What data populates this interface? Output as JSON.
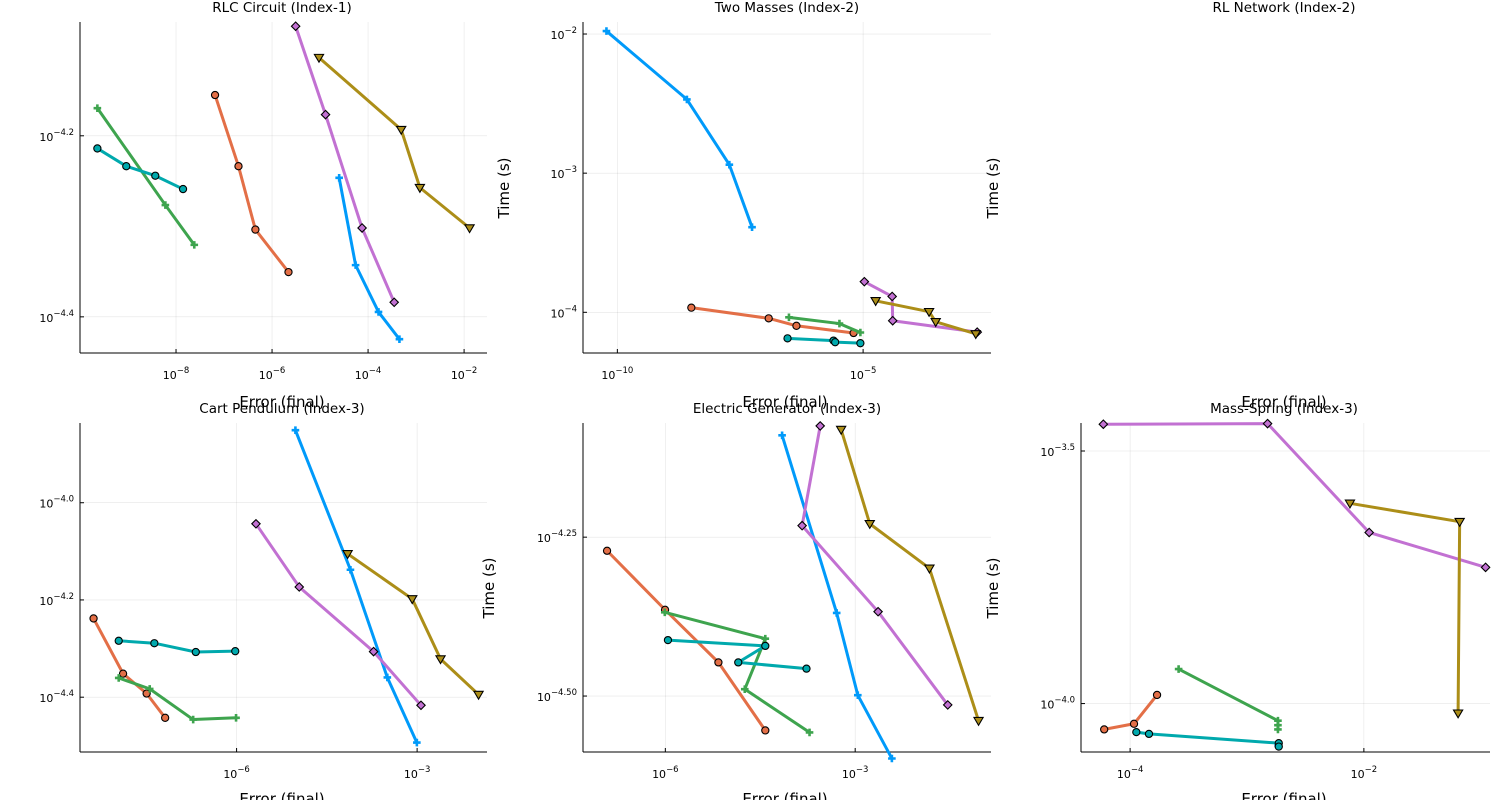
{
  "chart_data": [
    {
      "type": "line",
      "title": "RLC Circuit (Index-1)",
      "xlabel": "Error (final)",
      "ylabel": "",
      "xscale": "log",
      "yscale": "log",
      "xlim": [
        1e-10,
        0.03
      ],
      "ylim": [
        3.63e-05,
        8.43e-05
      ],
      "xticks": [
        1e-08,
        1e-06,
        0.0001,
        0.01
      ],
      "xticklabels": [
        [
          "10",
          "−8"
        ],
        [
          "10",
          "−6"
        ],
        [
          "10",
          "−4"
        ],
        [
          "10",
          "−2"
        ]
      ],
      "yticks": [
        6.31e-05,
        3.98e-05
      ],
      "yticklabels": [
        [
          "10",
          "−4.2"
        ],
        [
          "10",
          "−4.4"
        ]
      ],
      "grid": true,
      "legend": "none",
      "series": [
        {
          "color": "#009AFA",
          "marker": "cross",
          "points": [
            [
              2.5e-05,
              5.67e-05
            ],
            [
              5.5e-05,
              4.54e-05
            ],
            [
              0.000165,
              4.03e-05
            ],
            [
              0.00045,
              3.76e-05
            ]
          ]
        },
        {
          "color": "#E36F47",
          "marker": "circle",
          "points": [
            [
              6.5e-08,
              7e-05
            ],
            [
              2e-07,
              5.84e-05
            ],
            [
              4.5e-07,
              4.97e-05
            ],
            [
              2.2e-06,
              4.46e-05
            ]
          ]
        },
        {
          "color": "#3EA44E",
          "marker": "cross",
          "points": [
            [
              2.3e-10,
              6.77e-05
            ],
            [
              6e-09,
              5.29e-05
            ],
            [
              2.4e-08,
              4.78e-05
            ]
          ]
        },
        {
          "color": "#C271D2",
          "marker": "diamond",
          "points": [
            [
              3.1e-06,
              8.34e-05
            ],
            [
              1.3e-05,
              6.66e-05
            ],
            [
              7.5e-05,
              4.99e-05
            ],
            [
              0.00035,
              4.13e-05
            ]
          ]
        },
        {
          "color": "#AC8E18",
          "marker": "triangle",
          "points": [
            [
              9.5e-06,
              7.7e-05
            ],
            [
              0.00049,
              6.41e-05
            ],
            [
              0.0012,
              5.53e-05
            ],
            [
              0.013,
              4.99e-05
            ]
          ]
        },
        {
          "color": "#00A9AD",
          "marker": "circle",
          "points": [
            [
              2.3e-10,
              6.11e-05
            ],
            [
              9.2e-10,
              5.84e-05
            ],
            [
              3.7e-09,
              5.7e-05
            ],
            [
              1.4e-08,
              5.51e-05
            ]
          ]
        }
      ]
    },
    {
      "type": "line",
      "title": "Two Masses (Index-2)",
      "xlabel": "Error (final)",
      "ylabel": "Time (s)",
      "xscale": "log",
      "yscale": "log",
      "xlim": [
        2e-11,
        0.004
      ],
      "ylim": [
        5.1e-05,
        0.0122
      ],
      "xticks": [
        1e-10,
        1e-05
      ],
      "xticklabels": [
        [
          "10",
          "−10"
        ],
        [
          "10",
          "−5"
        ]
      ],
      "yticks": [
        0.0001,
        0.001,
        0.01
      ],
      "yticklabels": [
        [
          "10",
          "−4"
        ],
        [
          "10",
          "−3"
        ],
        [
          "10",
          "−2"
        ]
      ],
      "grid": true,
      "legend": "none",
      "series": [
        {
          "color": "#009AFA",
          "marker": "cross",
          "points": [
            [
              6e-11,
              0.0105
            ],
            [
              2.6e-09,
              0.00339
            ],
            [
              1.9e-08,
              0.00115
            ],
            [
              5.5e-08,
              0.000409
            ]
          ]
        },
        {
          "color": "#E36F47",
          "marker": "circle",
          "points": [
            [
              3.2e-09,
              0.000108
            ],
            [
              1.2e-07,
              9.05e-05
            ],
            [
              4.4e-07,
              8e-05
            ],
            [
              6.4e-06,
              7.1e-05
            ]
          ]
        },
        {
          "color": "#3EA44E",
          "marker": "cross",
          "points": [
            [
              3.1e-07,
              9.2e-05
            ],
            [
              3.3e-06,
              8.3e-05
            ],
            [
              8.8e-06,
              7.16e-05
            ]
          ]
        },
        {
          "color": "#C271D2",
          "marker": "diamond",
          "points": [
            [
              1.06e-05,
              0.000166
            ],
            [
              3.9e-05,
              0.00013
            ],
            [
              4e-05,
              8.7e-05
            ],
            [
              0.0021,
              7.2e-05
            ]
          ]
        },
        {
          "color": "#AC8E18",
          "marker": "triangle",
          "points": [
            [
              1.8e-05,
              0.000121
            ],
            [
              0.00022,
              0.000101
            ],
            [
              0.0003,
              8.55e-05
            ],
            [
              0.00196,
              7e-05
            ]
          ]
        },
        {
          "color": "#00A9AD",
          "marker": "circle",
          "points": [
            [
              2.9e-07,
              6.5e-05
            ],
            [
              2.5e-06,
              6.26e-05
            ],
            [
              2.7e-06,
              6.1e-05
            ],
            [
              8.8e-06,
              6e-05
            ]
          ]
        }
      ]
    },
    {
      "type": "line",
      "title": "RL Network (Index-2)",
      "xlabel": "Error (final)",
      "ylabel": "Time (s)",
      "grid": false,
      "legend": "none",
      "series": []
    },
    {
      "type": "line",
      "title": "Cart Pendulum (Index-3)",
      "xlabel": "Error (final)",
      "ylabel": "",
      "xscale": "log",
      "yscale": "log",
      "xlim": [
        2.5e-09,
        0.0145
      ],
      "ylim": [
        3.07e-05,
        0.0001459
      ],
      "xticks": [
        1e-06,
        0.001
      ],
      "xticklabels": [
        [
          "10",
          "−6"
        ],
        [
          "10",
          "−3"
        ]
      ],
      "yticks": [
        0.0001,
        6.31e-05,
        3.98e-05
      ],
      "yticklabels": [
        [
          "10",
          "−4.0"
        ],
        [
          "10",
          "−4.2"
        ],
        [
          "10",
          "−4.4"
        ]
      ],
      "grid": true,
      "legend": "none",
      "series": [
        {
          "color": "#009AFA",
          "marker": "cross",
          "points": [
            [
              9.5e-06,
              0.000141
            ],
            [
              7.8e-05,
              7.28e-05
            ],
            [
              0.00032,
              4.37e-05
            ],
            [
              0.00099,
              3.21e-05
            ]
          ]
        },
        {
          "color": "#E36F47",
          "marker": "circle",
          "points": [
            [
              4.2e-09,
              5.78e-05
            ],
            [
              1.3e-08,
              4.45e-05
            ],
            [
              3.2e-08,
              4.05e-05
            ],
            [
              6.5e-08,
              3.61e-05
            ]
          ]
        },
        {
          "color": "#3EA44E",
          "marker": "cross",
          "points": [
            [
              1.1e-08,
              4.36e-05
            ],
            [
              3.6e-08,
              4.14e-05
            ],
            [
              1.9e-07,
              3.58e-05
            ],
            [
              9.8e-07,
              3.61e-05
            ]
          ]
        },
        {
          "color": "#C271D2",
          "marker": "diamond",
          "points": [
            [
              2.1e-06,
              9.05e-05
            ],
            [
              1.1e-05,
              6.71e-05
            ],
            [
              0.000189,
              4.94e-05
            ],
            [
              0.00116,
              3.83e-05
            ]
          ]
        },
        {
          "color": "#AC8E18",
          "marker": "triangle",
          "points": [
            [
              7e-05,
              7.85e-05
            ],
            [
              0.00083,
              6.34e-05
            ],
            [
              0.00245,
              4.77e-05
            ],
            [
              0.0105,
              4.03e-05
            ]
          ]
        },
        {
          "color": "#00A9AD",
          "marker": "circle",
          "points": [
            [
              1.1e-08,
              5.2e-05
            ],
            [
              4.3e-08,
              5.14e-05
            ],
            [
              2.1e-07,
              4.93e-05
            ],
            [
              9.5e-07,
              4.95e-05
            ]
          ]
        }
      ]
    },
    {
      "type": "line",
      "title": "Electric Generator (Index-3)",
      "xlabel": "Error (final)",
      "ylabel": "Time (s)",
      "xscale": "log",
      "yscale": "log",
      "xlim": [
        5e-08,
        0.14
      ],
      "ylim": [
        2.58e-05,
        8.5e-05
      ],
      "xticks": [
        1e-06,
        0.001
      ],
      "xticklabels": [
        [
          "10",
          "−6"
        ],
        [
          "10",
          "−3"
        ]
      ],
      "yticks": [
        5.62e-05,
        3.16e-05
      ],
      "yticklabels": [
        [
          "10",
          "−4.25"
        ],
        [
          "10",
          "−4.50"
        ]
      ],
      "grid": true,
      "legend": "none",
      "series": [
        {
          "color": "#009AFA",
          "marker": "cross",
          "points": [
            [
              7e-05,
              8.13e-05
            ],
            [
              0.00051,
              4.27e-05
            ],
            [
              0.0011,
              3.17e-05
            ],
            [
              0.0038,
              2.52e-05
            ]
          ]
        },
        {
          "color": "#E36F47",
          "marker": "circle",
          "points": [
            [
              1.2e-07,
              5.35e-05
            ],
            [
              9.9e-07,
              4.32e-05
            ],
            [
              6.9e-06,
              3.57e-05
            ],
            [
              3.8e-05,
              2.79e-05
            ]
          ]
        },
        {
          "color": "#3EA44E",
          "marker": "cross",
          "points": [
            [
              9.8e-07,
              4.28e-05
            ],
            [
              3.8e-05,
              3.89e-05
            ],
            [
              1.8e-05,
              3.24e-05
            ],
            [
              0.00019,
              2.77e-05
            ]
          ]
        },
        {
          "color": "#C271D2",
          "marker": "diamond",
          "points": [
            [
              0.00028,
              8.41e-05
            ],
            [
              0.000145,
              5.86e-05
            ],
            [
              0.0023,
              4.29e-05
            ],
            [
              0.029,
              3.06e-05
            ]
          ]
        },
        {
          "color": "#AC8E18",
          "marker": "triangle",
          "points": [
            [
              0.0006,
              8.3e-05
            ],
            [
              0.0017,
              5.9e-05
            ],
            [
              0.0149,
              5.02e-05
            ],
            [
              0.089,
              2.89e-05
            ]
          ]
        },
        {
          "color": "#00A9AD",
          "marker": "circle",
          "points": [
            [
              1.1e-06,
              3.87e-05
            ],
            [
              3.8e-05,
              3.79e-05
            ],
            [
              1.42e-05,
              3.57e-05
            ],
            [
              0.00017,
              3.49e-05
            ]
          ]
        }
      ]
    },
    {
      "type": "line",
      "title": "Mass-Spring (Index-3)",
      "xlabel": "Error (final)",
      "ylabel": "Time (s)",
      "xscale": "log",
      "yscale": "log",
      "xlim": [
        3.8e-05,
        0.12
      ],
      "ylim": [
        8.02e-05,
        0.000359
      ],
      "xticks": [
        0.0001,
        0.01
      ],
      "xticklabels": [
        [
          "10",
          "−4"
        ],
        [
          "10",
          "−2"
        ]
      ],
      "yticks": [
        0.000316,
        0.0001
      ],
      "yticklabels": [
        [
          "10",
          "−3.5"
        ],
        [
          "10",
          "−4.0"
        ]
      ],
      "grid": true,
      "legend": "none",
      "series": [
        {
          "color": "#009AFA",
          "marker": "cross",
          "points": [
            [
              0.00185,
              8.25e-05
            ],
            [
              0.00185,
              8.29e-05
            ]
          ]
        },
        {
          "color": "#E36F47",
          "marker": "circle",
          "points": [
            [
              6e-05,
              8.89e-05
            ],
            [
              0.000108,
              9.12e-05
            ],
            [
              0.00017,
              0.000104
            ]
          ]
        },
        {
          "color": "#3EA44E",
          "marker": "cross",
          "points": [
            [
              0.00026,
              0.000117
            ],
            [
              0.00184,
              9.25e-05
            ],
            [
              0.00184,
              8.89e-05
            ],
            [
              0.00184,
              9.06e-05
            ]
          ]
        },
        {
          "color": "#C271D2",
          "marker": "diamond",
          "points": [
            [
              5.9e-05,
              0.000357
            ],
            [
              0.0015,
              0.000358
            ],
            [
              0.0111,
              0.000218
            ],
            [
              0.11,
              0.000186
            ]
          ]
        },
        {
          "color": "#AC8E18",
          "marker": "triangle",
          "points": [
            [
              0.0076,
              0.000249
            ],
            [
              0.066,
              0.000229
            ],
            [
              0.064,
              9.57e-05
            ]
          ]
        },
        {
          "color": "#00A9AD",
          "marker": "circle",
          "points": [
            [
              0.000113,
              8.78e-05
            ],
            [
              0.000145,
              8.71e-05
            ],
            [
              0.00187,
              8.35e-05
            ],
            [
              0.00187,
              8.22e-05
            ]
          ]
        }
      ]
    }
  ]
}
